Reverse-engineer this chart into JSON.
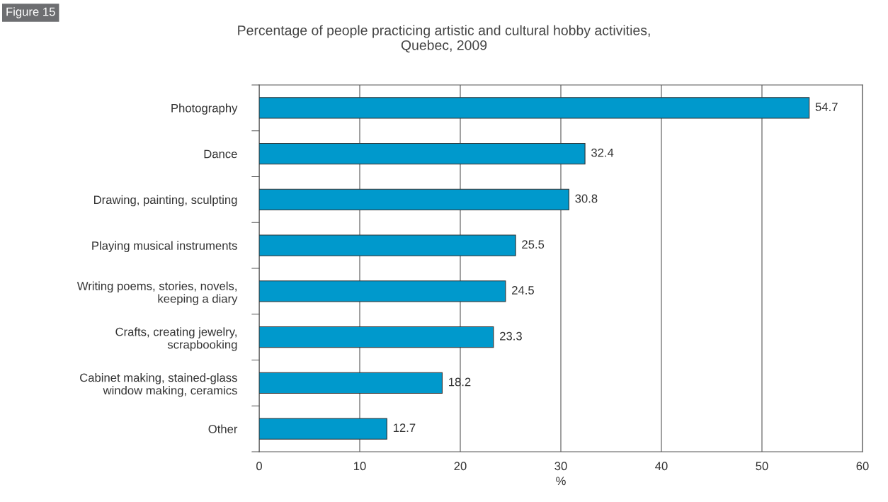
{
  "chart_data": {
    "type": "bar",
    "orientation": "horizontal",
    "title": "Percentage of people practicing artistic and cultural hobby activities,\nQuebec, 2009",
    "annotations": [
      "Figure 15"
    ],
    "categories": [
      "Photography",
      "Dance",
      "Drawing, painting, sculpting",
      "Playing musical instruments",
      "Writing poems, stories, novels,\nkeeping a diary",
      "Crafts, creating jewelry,\nscrapbooking",
      "Cabinet making, stained-glass\nwindow making, ceramics",
      "Other"
    ],
    "values": [
      54.7,
      32.4,
      30.8,
      25.5,
      24.5,
      23.3,
      18.2,
      12.7
    ],
    "color": "#0099cc",
    "data_labels": true,
    "xlabel": "%",
    "xlim": [
      0,
      60
    ],
    "xticks": [
      0,
      10,
      20,
      30,
      40,
      50,
      60
    ],
    "grid": "x"
  }
}
